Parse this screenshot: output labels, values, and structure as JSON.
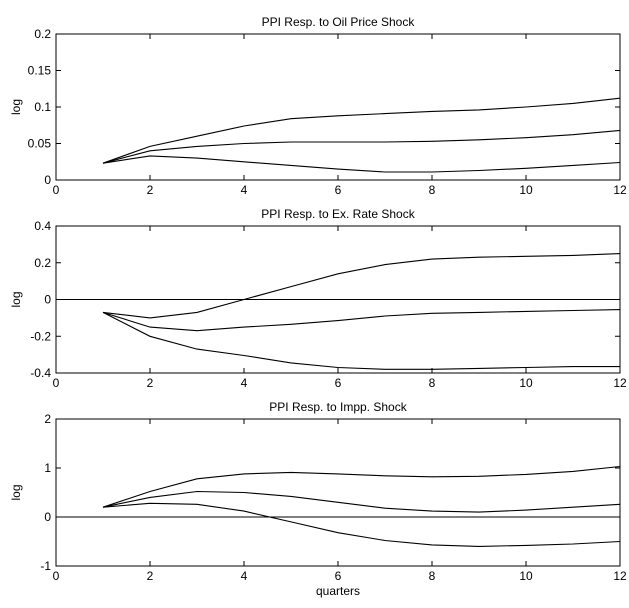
{
  "chart_data": [
    {
      "type": "line",
      "title": "PPI Resp. to Oil Price Shock",
      "xlabel": "",
      "ylabel": "log",
      "xlim": [
        0,
        12
      ],
      "ylim": [
        0,
        0.2
      ],
      "xticks": [
        0,
        2,
        4,
        6,
        8,
        10,
        12
      ],
      "yticks": [
        0,
        0.05,
        0.1,
        0.15,
        0.2
      ],
      "xtick_labels": [
        "0",
        "2",
        "4",
        "6",
        "8",
        "10",
        "12"
      ],
      "ytick_labels": [
        "0",
        "0.05",
        "0.1",
        "0.15",
        "0.2"
      ],
      "zero_line": false,
      "grid": false,
      "x": [
        1,
        2,
        3,
        4,
        5,
        6,
        7,
        8,
        9,
        10,
        11,
        12
      ],
      "series": [
        {
          "values": [
            0.023,
            0.046,
            0.06,
            0.074,
            0.084,
            0.088,
            0.091,
            0.094,
            0.096,
            0.1,
            0.105,
            0.112
          ]
        },
        {
          "values": [
            0.023,
            0.04,
            0.046,
            0.05,
            0.052,
            0.052,
            0.052,
            0.053,
            0.055,
            0.058,
            0.062,
            0.068
          ]
        },
        {
          "values": [
            0.023,
            0.033,
            0.03,
            0.025,
            0.02,
            0.015,
            0.011,
            0.011,
            0.013,
            0.016,
            0.02,
            0.024
          ]
        }
      ]
    },
    {
      "type": "line",
      "title": "PPI Resp. to Ex. Rate Shock",
      "xlabel": "",
      "ylabel": "log",
      "xlim": [
        0,
        12
      ],
      "ylim": [
        -0.4,
        0.4
      ],
      "xticks": [
        0,
        2,
        4,
        6,
        8,
        10,
        12
      ],
      "yticks": [
        -0.4,
        -0.2,
        0,
        0.2,
        0.4
      ],
      "xtick_labels": [
        "0",
        "2",
        "4",
        "6",
        "8",
        "10",
        "12"
      ],
      "ytick_labels": [
        "-0.4",
        "-0.2",
        "0",
        "0.2",
        "0.4"
      ],
      "zero_line": true,
      "grid": false,
      "x": [
        1,
        2,
        3,
        4,
        5,
        6,
        7,
        8,
        9,
        10,
        11,
        12
      ],
      "series": [
        {
          "values": [
            -0.07,
            -0.1,
            -0.07,
            0.0,
            0.07,
            0.14,
            0.19,
            0.22,
            0.23,
            0.235,
            0.24,
            0.25
          ]
        },
        {
          "values": [
            -0.07,
            -0.15,
            -0.17,
            -0.15,
            -0.135,
            -0.115,
            -0.09,
            -0.075,
            -0.07,
            -0.065,
            -0.06,
            -0.055
          ]
        },
        {
          "values": [
            -0.07,
            -0.2,
            -0.27,
            -0.305,
            -0.345,
            -0.37,
            -0.38,
            -0.38,
            -0.375,
            -0.37,
            -0.365,
            -0.365
          ]
        }
      ]
    },
    {
      "type": "line",
      "title": "PPI Resp. to Impp. Shock",
      "xlabel": "quarters",
      "ylabel": "log",
      "xlim": [
        0,
        12
      ],
      "ylim": [
        -1,
        2
      ],
      "xticks": [
        0,
        2,
        4,
        6,
        8,
        10,
        12
      ],
      "yticks": [
        -1,
        0,
        1,
        2
      ],
      "xtick_labels": [
        "0",
        "2",
        "4",
        "6",
        "8",
        "10",
        "12"
      ],
      "ytick_labels": [
        "-1",
        "0",
        "1",
        "2"
      ],
      "zero_line": true,
      "grid": false,
      "x": [
        1,
        2,
        3,
        4,
        5,
        6,
        7,
        8,
        9,
        10,
        11,
        12
      ],
      "series": [
        {
          "values": [
            0.2,
            0.52,
            0.78,
            0.88,
            0.91,
            0.88,
            0.84,
            0.82,
            0.83,
            0.87,
            0.93,
            1.03
          ]
        },
        {
          "values": [
            0.2,
            0.4,
            0.52,
            0.5,
            0.42,
            0.3,
            0.18,
            0.12,
            0.1,
            0.14,
            0.2,
            0.26
          ]
        },
        {
          "values": [
            0.2,
            0.28,
            0.26,
            0.12,
            -0.1,
            -0.32,
            -0.48,
            -0.57,
            -0.6,
            -0.58,
            -0.55,
            -0.5
          ]
        }
      ]
    }
  ]
}
